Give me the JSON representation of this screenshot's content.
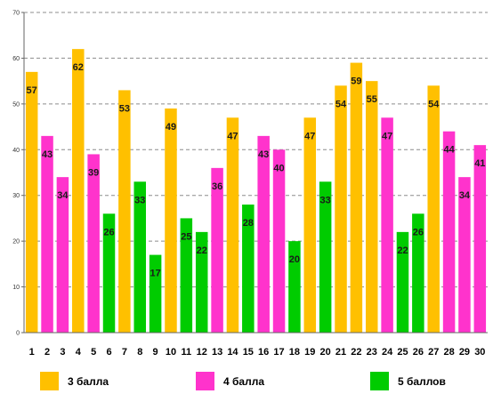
{
  "chart_data": {
    "type": "bar",
    "categories": [
      "1",
      "2",
      "3",
      "4",
      "5",
      "6",
      "7",
      "8",
      "9",
      "10",
      "11",
      "12",
      "13",
      "14",
      "15",
      "16",
      "17",
      "18",
      "19",
      "20",
      "21",
      "22",
      "23",
      "24",
      "25",
      "26",
      "27",
      "28",
      "29",
      "30"
    ],
    "values": [
      57,
      43,
      34,
      62,
      39,
      26,
      53,
      33,
      17,
      49,
      25,
      22,
      36,
      47,
      28,
      43,
      40,
      20,
      47,
      33,
      54,
      59,
      55,
      47,
      22,
      26,
      54,
      44,
      34,
      41
    ],
    "bar_groups": [
      "3",
      "4",
      "4",
      "3",
      "4",
      "5",
      "3",
      "5",
      "5",
      "3",
      "5",
      "5",
      "4",
      "3",
      "5",
      "4",
      "4",
      "5",
      "3",
      "5",
      "3",
      "3",
      "3",
      "4",
      "5",
      "5",
      "3",
      "4",
      "4",
      "4"
    ],
    "series": [
      {
        "key": "3",
        "name": "3 балла",
        "color": "#FFC000"
      },
      {
        "key": "4",
        "name": "4 балла",
        "color": "#FF33CC"
      },
      {
        "key": "5",
        "name": "5 баллов",
        "color": "#00CC00"
      }
    ],
    "y_ticks": [
      0,
      10,
      20,
      30,
      40,
      50,
      60,
      70
    ],
    "ylim": [
      0,
      70
    ],
    "grid": true,
    "legend_position": "bottom",
    "title": "",
    "xlabel": "",
    "ylabel": ""
  }
}
